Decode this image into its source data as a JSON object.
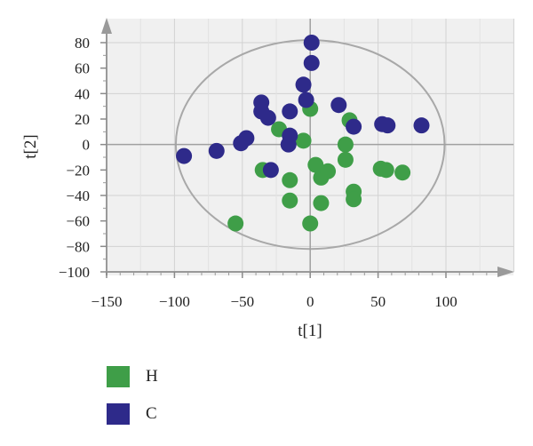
{
  "chart_data": {
    "type": "scatter",
    "xlabel": "t[1]",
    "ylabel": "t[2]",
    "xlim": [
      -150,
      150
    ],
    "ylim": [
      -100,
      100
    ],
    "xticks": [
      -150,
      -100,
      -50,
      0,
      50,
      100
    ],
    "yticks": [
      80,
      60,
      40,
      20,
      0,
      -20,
      -40,
      -60,
      -80,
      -100
    ],
    "grid": true,
    "legend_position": "bottom-left",
    "ellipse": {
      "cx": 0,
      "cy": 0,
      "rx": 99,
      "ry": 82
    },
    "series": [
      {
        "name": "H",
        "color": "#3f9e48",
        "points": [
          [
            -55,
            -62
          ],
          [
            -35,
            -20
          ],
          [
            -23,
            12
          ],
          [
            -15,
            -28
          ],
          [
            -15,
            -44
          ],
          [
            -5,
            3
          ],
          [
            0,
            28
          ],
          [
            0,
            -62
          ],
          [
            4,
            -16
          ],
          [
            8,
            -26
          ],
          [
            8,
            -46
          ],
          [
            13,
            -21
          ],
          [
            26,
            0
          ],
          [
            26,
            -12
          ],
          [
            29,
            19
          ],
          [
            32,
            -37
          ],
          [
            32,
            -43
          ],
          [
            52,
            -19
          ],
          [
            56,
            -20
          ],
          [
            68,
            -22
          ]
        ]
      },
      {
        "name": "C",
        "color": "#2e2a8a",
        "points": [
          [
            -93,
            -9
          ],
          [
            -69,
            -5
          ],
          [
            -51,
            1
          ],
          [
            -47,
            5
          ],
          [
            -36,
            33
          ],
          [
            -36,
            26
          ],
          [
            -31,
            21
          ],
          [
            -29,
            -20
          ],
          [
            -15,
            26
          ],
          [
            -15,
            7
          ],
          [
            -16,
            0
          ],
          [
            -5,
            47
          ],
          [
            -3,
            35
          ],
          [
            1,
            64
          ],
          [
            1,
            80
          ],
          [
            21,
            31
          ],
          [
            32,
            14
          ],
          [
            53,
            16
          ],
          [
            57,
            15
          ],
          [
            82,
            15
          ]
        ]
      }
    ]
  },
  "legend": {
    "items": [
      {
        "label": "H",
        "color": "#3f9e48"
      },
      {
        "label": "C",
        "color": "#2e2a8a"
      }
    ]
  }
}
